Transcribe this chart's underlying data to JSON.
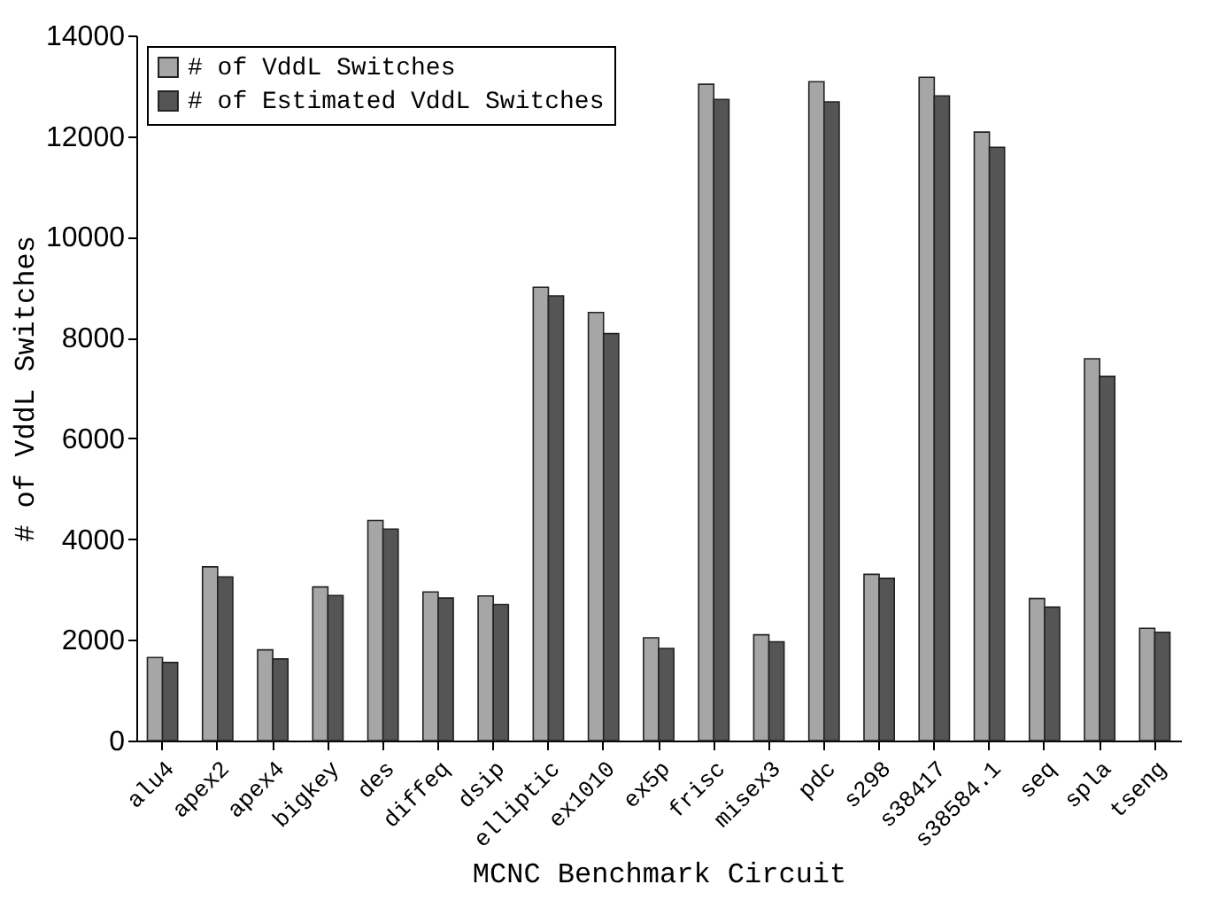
{
  "chart_data": {
    "type": "bar",
    "xlabel": "MCNC Benchmark Circuit",
    "ylabel": "# of VddL Switches",
    "categories": [
      "alu4",
      "apex2",
      "apex4",
      "bigkey",
      "des",
      "diffeq",
      "dsip",
      "elliptic",
      "ex1010",
      "ex5p",
      "frisc",
      "misex3",
      "pdc",
      "s298",
      "s38417",
      "s38584.1",
      "seq",
      "spla",
      "tseng"
    ],
    "series": [
      {
        "name": "# of VddL Switches",
        "color": "#a6a6a6",
        "values": [
          1650,
          3450,
          1800,
          3050,
          4370,
          2950,
          2870,
          9000,
          8500,
          2040,
          13030,
          2100,
          13080,
          3300,
          13170,
          12080,
          2820,
          7580,
          2230
        ]
      },
      {
        "name": "# of Estimated VddL Switches",
        "color": "#555555",
        "values": [
          1550,
          3250,
          1620,
          2880,
          4200,
          2830,
          2700,
          8830,
          8080,
          1830,
          12730,
          1960,
          12680,
          3220,
          12800,
          11780,
          2650,
          7230,
          2150
        ]
      }
    ],
    "ylim": [
      0,
      14000
    ],
    "yticks": [
      0,
      2000,
      4000,
      6000,
      8000,
      10000,
      12000,
      14000
    ],
    "grid": false,
    "legend": "top left"
  }
}
